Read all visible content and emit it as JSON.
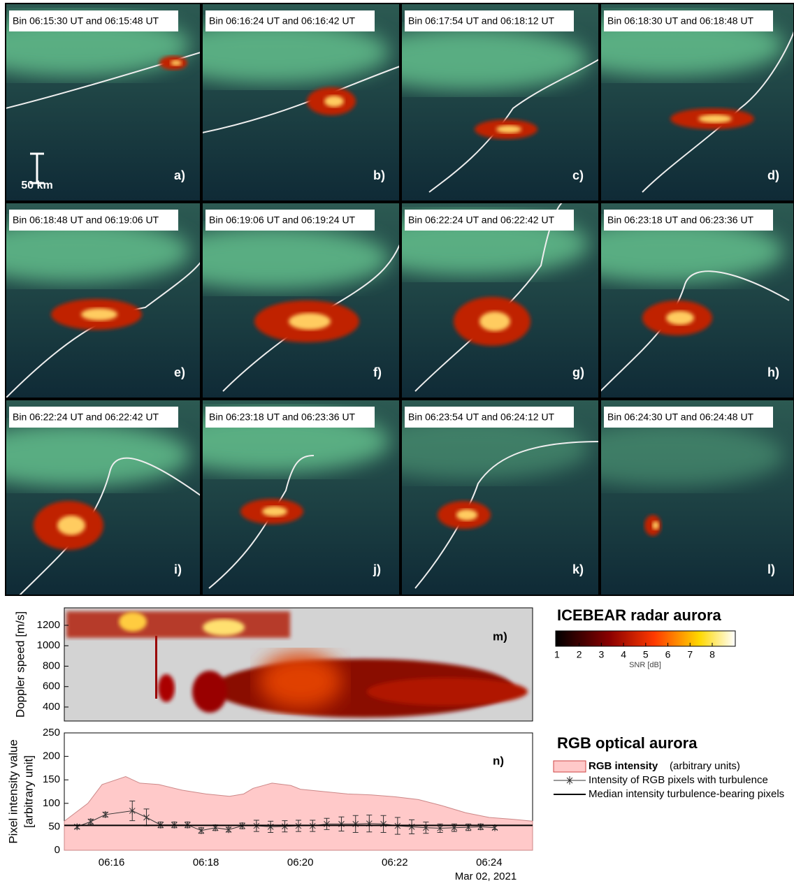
{
  "panels": [
    {
      "bin": "Bin 06:15:30 UT and 06:15:48 UT",
      "label": "a)"
    },
    {
      "bin": "Bin 06:16:24 UT and 06:16:42 UT",
      "label": "b)"
    },
    {
      "bin": "Bin 06:17:54 UT and 06:18:12 UT",
      "label": "c)"
    },
    {
      "bin": "Bin 06:18:30 UT and 06:18:48 UT",
      "label": "d)"
    },
    {
      "bin": "Bin 06:18:48 UT and 06:19:06 UT",
      "label": "e)"
    },
    {
      "bin": "Bin 06:19:06 UT and 06:19:24 UT",
      "label": "f)"
    },
    {
      "bin": "Bin 06:22:24 UT and 06:22:42 UT",
      "label": "g)"
    },
    {
      "bin": "Bin 06:23:18 UT and 06:23:36 UT",
      "label": "h)"
    },
    {
      "bin": "Bin 06:22:24 UT and 06:22:42 UT",
      "label": "i)"
    },
    {
      "bin": "Bin 06:23:18 UT and 06:23:36 UT",
      "label": "j)"
    },
    {
      "bin": "Bin 06:23:54 UT and 06:24:12 UT",
      "label": "k)"
    },
    {
      "bin": "Bin 06:24:30 UT and 06:24:48 UT",
      "label": "l)"
    }
  ],
  "scale_label": "50 km",
  "chart_data": [
    {
      "type": "heatmap",
      "panel_label": "m)",
      "ylabel": "Doppler speed [m/s]",
      "xlim": [
        15,
        24.92
      ],
      "ylim": [
        263,
        1371
      ],
      "yticks": [
        400,
        600,
        800,
        1000,
        1200
      ],
      "colorbar": {
        "title": "ICEBEAR radar aurora",
        "label": "SNR [dB]",
        "lim": [
          0.94,
          9.04
        ],
        "ticks": [
          1,
          2,
          3,
          4,
          5,
          6,
          7,
          8
        ]
      }
    },
    {
      "type": "line",
      "panel_label": "n)",
      "title": "RGB optical aurora",
      "ylabel": [
        "Pixel intensity value",
        "[arbitrary unit]"
      ],
      "xlim": [
        15,
        24.92
      ],
      "ylim": [
        0,
        250
      ],
      "yticks": [
        0,
        50,
        100,
        150,
        200,
        250
      ],
      "xticks": [
        {
          "value": 16,
          "label": "06:16"
        },
        {
          "value": 18,
          "label": "06:18"
        },
        {
          "value": 20,
          "label": "06:20"
        },
        {
          "value": 22,
          "label": "06:22"
        },
        {
          "value": 24,
          "label": "06:24"
        }
      ],
      "date_label": "Mar 02, 2021",
      "series": [
        {
          "name": "RGB intensity",
          "unit_label": "(arbitrary units)",
          "kind": "area",
          "color": "#ffc9c9",
          "x": [
            15,
            15.5,
            15.8,
            16.3,
            16.6,
            17,
            17.5,
            18,
            18.5,
            18.8,
            19,
            19.4,
            19.8,
            20,
            20.5,
            21,
            21.5,
            22,
            22.5,
            23,
            23.5,
            24,
            24.5,
            24.92
          ],
          "values": [
            62,
            100,
            140,
            157,
            143,
            140,
            128,
            120,
            115,
            120,
            132,
            143,
            138,
            130,
            125,
            120,
            118,
            114,
            108,
            95,
            80,
            70,
            66,
            62
          ]
        },
        {
          "name": "Intensity of RGB pixels with turbulence",
          "kind": "errorbar",
          "color": "#333333",
          "x": [
            15.27,
            15.56,
            15.87,
            16.44,
            16.74,
            17.04,
            17.33,
            17.61,
            17.9,
            18.2,
            18.48,
            18.77,
            19.07,
            19.37,
            19.67,
            19.96,
            20.26,
            20.56,
            20.87,
            21.17,
            21.46,
            21.76,
            22.06,
            22.36,
            22.66,
            22.96,
            23.26,
            23.56,
            23.82,
            24.12
          ],
          "values": [
            50,
            61,
            76,
            84,
            70,
            54,
            54,
            54,
            42,
            48,
            44,
            52,
            52,
            50,
            51,
            52,
            52,
            56,
            56,
            56,
            57,
            56,
            52,
            50,
            48,
            47,
            48,
            49,
            50,
            48
          ],
          "errors": [
            4,
            5,
            5,
            21,
            18,
            6,
            6,
            6,
            6,
            6,
            5,
            6,
            12,
            12,
            12,
            12,
            12,
            12,
            15,
            18,
            18,
            18,
            18,
            15,
            12,
            9,
            8,
            7,
            6,
            4
          ]
        },
        {
          "name": "Median intensity turbulence-bearing pixels",
          "kind": "hline",
          "color": "#000000",
          "value": 53
        }
      ]
    }
  ]
}
